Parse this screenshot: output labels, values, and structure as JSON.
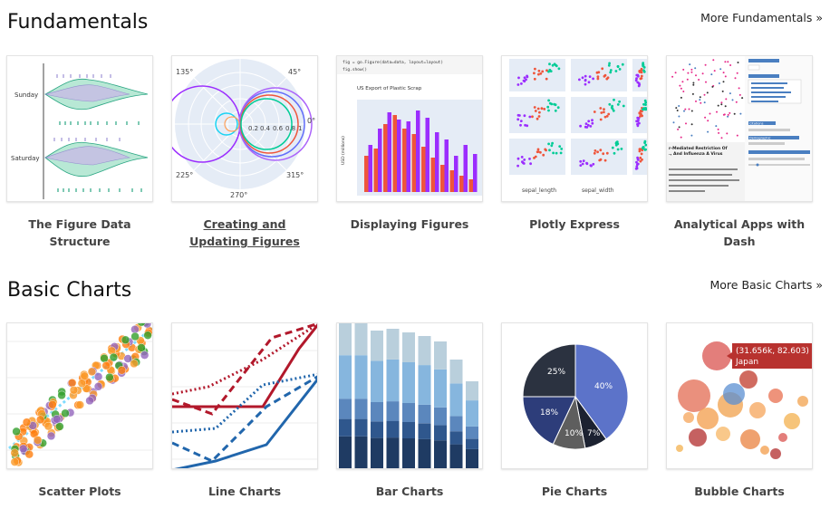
{
  "fundamentals": {
    "title": "Fundamentals",
    "more_link": "More Fundamentals »",
    "cards": [
      {
        "label": "The Figure Data Structure",
        "thumb_text": [
          "Sunday",
          "Saturday"
        ]
      },
      {
        "label": "Creating and Updating Figures",
        "thumb_text": [
          "135°",
          "45°",
          "0.2",
          "0.4",
          "0.6",
          "0.8",
          "1",
          "0°",
          "225°",
          "315°",
          "270°"
        ]
      },
      {
        "label": "Displaying Figures",
        "thumb_text": [
          "fig = go.Figure(data=data, layout=layout)",
          "fig.show()",
          "US Export of Plastic Scrap",
          "USD (millions)"
        ]
      },
      {
        "label": "Plotly Express",
        "thumb_text": [
          "sepal_length",
          "sepal_width"
        ]
      },
      {
        "label": "Analytical Apps with Dash",
        "thumb_text": [
          "r-Mediated Restriction Of",
          "., And Influenza A Virus",
          "Citations",
          "Demographic"
        ]
      }
    ]
  },
  "basic_charts": {
    "title": "Basic Charts",
    "more_link": "More Basic Charts »",
    "cards": [
      {
        "label": "Scatter Plots"
      },
      {
        "label": "Line Charts"
      },
      {
        "label": "Bar Charts"
      },
      {
        "label": "Pie Charts",
        "thumb_text": [
          "25%",
          "40%",
          "18%",
          "10%",
          "7%"
        ]
      },
      {
        "label": "Bubble Charts",
        "thumb_text": [
          "(31.656k, 82.603)",
          "Japan"
        ]
      }
    ]
  },
  "colors": {
    "link": "#222222",
    "caption": "#444444",
    "plotly_purple": "#9b2dfe",
    "plotly_red": "#ef553b",
    "plotly_green": "#00cc96",
    "line_red": "#b2182b",
    "line_blue": "#2166ac",
    "pie_blue": "#5c73c9"
  }
}
